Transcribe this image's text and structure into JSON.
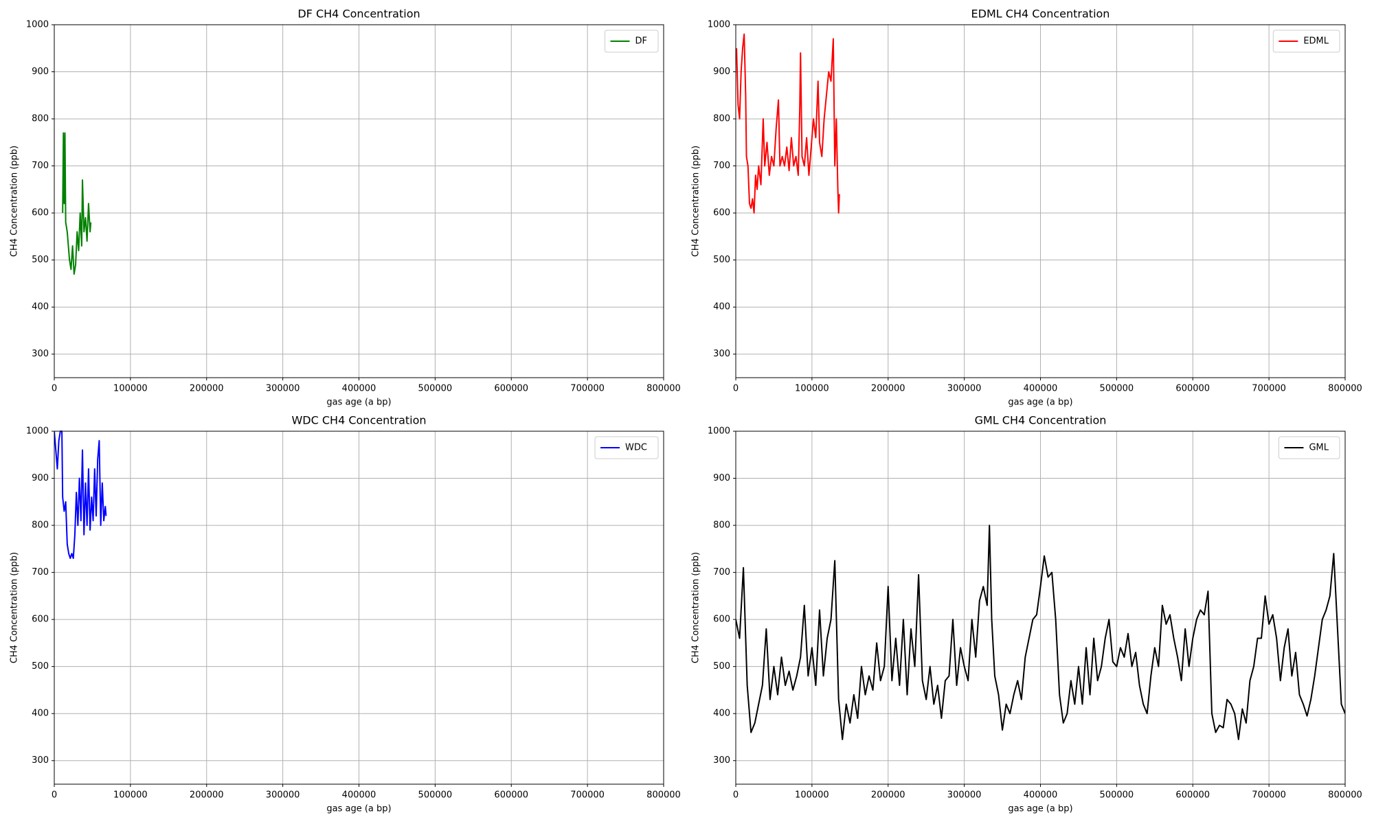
{
  "chart_data": [
    {
      "type": "line",
      "title": "DF CH4 Concentration",
      "xlabel": "gas age (a bp)",
      "ylabel": "CH4 Concentration (ppb)",
      "xlim": [
        0,
        800000
      ],
      "ylim": [
        250,
        1000
      ],
      "xticks": [
        0,
        100000,
        200000,
        300000,
        400000,
        500000,
        600000,
        700000,
        800000
      ],
      "yticks": [
        300,
        400,
        500,
        600,
        700,
        800,
        900,
        1000
      ],
      "grid": true,
      "legend": "upper right",
      "series": [
        {
          "name": "DF",
          "color": "#008000",
          "x": [
            11000,
            12000,
            13000,
            14000,
            15000,
            17000,
            20000,
            22000,
            24000,
            26000,
            28000,
            30000,
            32000,
            34000,
            36000,
            37000,
            39000,
            41000,
            43000,
            45000,
            47000,
            48000
          ],
          "values": [
            600,
            770,
            620,
            770,
            580,
            560,
            500,
            480,
            530,
            470,
            490,
            560,
            520,
            600,
            530,
            670,
            560,
            590,
            540,
            620,
            560,
            580
          ]
        }
      ]
    },
    {
      "type": "line",
      "title": "EDML CH4 Concentration",
      "xlabel": "gas age (a bp)",
      "ylabel": "CH4 Concentration (ppb)",
      "xlim": [
        0,
        800000
      ],
      "ylim": [
        250,
        1000
      ],
      "xticks": [
        0,
        100000,
        200000,
        300000,
        400000,
        500000,
        600000,
        700000,
        800000
      ],
      "yticks": [
        300,
        400,
        500,
        600,
        700,
        800,
        900,
        1000
      ],
      "grid": true,
      "legend": "upper right",
      "series": [
        {
          "name": "EDML",
          "color": "#ff0000",
          "x": [
            1000,
            3000,
            5000,
            7000,
            9000,
            11000,
            13000,
            14000,
            16000,
            18000,
            20000,
            22000,
            24000,
            26000,
            28000,
            30000,
            33000,
            36000,
            38000,
            41000,
            44000,
            47000,
            50000,
            53000,
            56000,
            58000,
            61000,
            64000,
            67000,
            70000,
            73000,
            76000,
            79000,
            82000,
            84000,
            85000,
            87000,
            90000,
            93000,
            96000,
            99000,
            102000,
            105000,
            108000,
            110000,
            113000,
            116000,
            119000,
            122000,
            125000,
            128000,
            130000,
            132000,
            134000,
            135000,
            136000
          ],
          "values": [
            950,
            830,
            800,
            900,
            950,
            980,
            850,
            720,
            700,
            620,
            610,
            630,
            600,
            680,
            650,
            700,
            660,
            800,
            700,
            750,
            680,
            720,
            700,
            780,
            840,
            700,
            720,
            700,
            740,
            690,
            760,
            700,
            720,
            680,
            820,
            940,
            720,
            700,
            760,
            680,
            740,
            800,
            760,
            880,
            750,
            720,
            800,
            850,
            900,
            880,
            970,
            700,
            800,
            650,
            600,
            640
          ]
        }
      ]
    },
    {
      "type": "line",
      "title": "WDC CH4 Concentration",
      "xlabel": "gas age (a bp)",
      "ylabel": "CH4 Concentration (ppb)",
      "xlim": [
        0,
        800000
      ],
      "ylim": [
        250,
        1000
      ],
      "xticks": [
        0,
        100000,
        200000,
        300000,
        400000,
        500000,
        600000,
        700000,
        800000
      ],
      "yticks": [
        300,
        400,
        500,
        600,
        700,
        800,
        900,
        1000
      ],
      "grid": true,
      "legend": "upper right",
      "series": [
        {
          "name": "WDC",
          "color": "#0000ff",
          "x": [
            0,
            2000,
            4000,
            6000,
            8000,
            10000,
            11000,
            13000,
            15000,
            17000,
            19000,
            21000,
            23000,
            25000,
            27000,
            29000,
            31000,
            33000,
            35000,
            37000,
            39000,
            41000,
            43000,
            45000,
            47000,
            49000,
            51000,
            53000,
            55000,
            57000,
            59000,
            61000,
            63000,
            65000,
            67000,
            68000
          ],
          "values": [
            1000,
            960,
            920,
            980,
            1000,
            1000,
            860,
            830,
            850,
            760,
            740,
            730,
            740,
            730,
            780,
            870,
            800,
            900,
            810,
            960,
            780,
            890,
            800,
            920,
            790,
            860,
            810,
            920,
            820,
            940,
            980,
            800,
            890,
            810,
            840,
            820
          ]
        }
      ]
    },
    {
      "type": "line",
      "title": "GML CH4 Concentration",
      "xlabel": "gas age (a bp)",
      "ylabel": "CH4 Concentration (ppb)",
      "xlim": [
        0,
        800000
      ],
      "ylim": [
        250,
        1000
      ],
      "xticks": [
        0,
        100000,
        200000,
        300000,
        400000,
        500000,
        600000,
        700000,
        800000
      ],
      "yticks": [
        300,
        400,
        500,
        600,
        700,
        800,
        900,
        1000
      ],
      "grid": true,
      "legend": "upper right",
      "series": [
        {
          "name": "GML",
          "color": "#000000",
          "x": [
            0,
            5000,
            10000,
            15000,
            20000,
            25000,
            30000,
            35000,
            40000,
            45000,
            50000,
            55000,
            60000,
            65000,
            70000,
            75000,
            80000,
            85000,
            90000,
            95000,
            100000,
            105000,
            110000,
            115000,
            120000,
            125000,
            130000,
            135000,
            140000,
            145000,
            150000,
            155000,
            160000,
            165000,
            170000,
            175000,
            180000,
            185000,
            190000,
            195000,
            200000,
            205000,
            210000,
            215000,
            220000,
            225000,
            230000,
            235000,
            240000,
            245000,
            250000,
            255000,
            260000,
            265000,
            270000,
            275000,
            280000,
            285000,
            290000,
            295000,
            300000,
            305000,
            310000,
            315000,
            320000,
            325000,
            330000,
            333000,
            336000,
            340000,
            345000,
            350000,
            355000,
            360000,
            365000,
            370000,
            375000,
            380000,
            385000,
            390000,
            395000,
            400000,
            405000,
            410000,
            415000,
            420000,
            425000,
            430000,
            435000,
            440000,
            445000,
            450000,
            455000,
            460000,
            465000,
            470000,
            475000,
            480000,
            485000,
            490000,
            495000,
            500000,
            505000,
            510000,
            515000,
            520000,
            525000,
            530000,
            535000,
            540000,
            545000,
            550000,
            555000,
            560000,
            565000,
            570000,
            575000,
            580000,
            585000,
            590000,
            595000,
            600000,
            605000,
            610000,
            615000,
            620000,
            625000,
            630000,
            635000,
            640000,
            645000,
            650000,
            655000,
            660000,
            665000,
            670000,
            675000,
            680000,
            685000,
            690000,
            695000,
            700000,
            705000,
            710000,
            715000,
            720000,
            725000,
            730000,
            735000,
            740000,
            745000,
            750000,
            755000,
            760000,
            765000,
            770000,
            775000,
            780000,
            785000,
            790000,
            795000,
            800000
          ],
          "values": [
            600,
            560,
            710,
            460,
            360,
            380,
            420,
            460,
            580,
            430,
            500,
            440,
            520,
            460,
            490,
            450,
            480,
            520,
            630,
            480,
            540,
            460,
            620,
            480,
            560,
            600,
            725,
            430,
            345,
            420,
            380,
            440,
            390,
            500,
            440,
            480,
            450,
            550,
            470,
            500,
            670,
            470,
            560,
            460,
            600,
            440,
            580,
            500,
            695,
            470,
            430,
            500,
            420,
            460,
            390,
            470,
            480,
            600,
            460,
            540,
            500,
            470,
            600,
            520,
            640,
            670,
            630,
            800,
            600,
            480,
            440,
            365,
            420,
            400,
            440,
            470,
            430,
            520,
            560,
            600,
            610,
            670,
            735,
            690,
            700,
            600,
            440,
            380,
            400,
            470,
            420,
            500,
            420,
            540,
            440,
            560,
            470,
            500,
            560,
            600,
            510,
            500,
            540,
            520,
            570,
            500,
            530,
            460,
            420,
            400,
            480,
            540,
            500,
            630,
            590,
            610,
            560,
            520,
            470,
            580,
            500,
            560,
            600,
            620,
            610,
            660,
            400,
            360,
            375,
            370,
            430,
            420,
            400,
            345,
            410,
            380,
            470,
            500,
            560,
            560,
            650,
            590,
            610,
            560,
            470,
            540,
            580,
            480,
            530,
            440,
            420,
            395,
            430,
            480,
            540,
            600,
            620,
            650,
            740,
            580,
            420,
            400
          ]
        }
      ]
    }
  ]
}
